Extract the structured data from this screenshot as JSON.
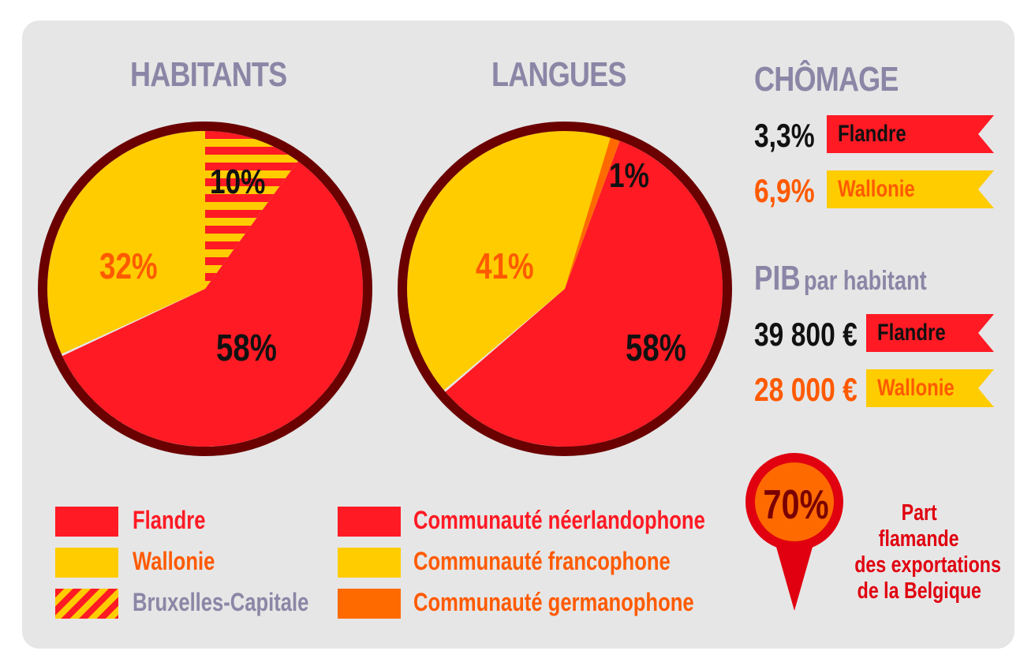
{
  "colors": {
    "flandre": "#ff1a24",
    "wallonie": "#ffcc00",
    "germanophone": "#ff6a00",
    "outline": "#6b0000",
    "title": "#8b86a6",
    "orange_text": "#ff5a00",
    "dark_text": "#111111"
  },
  "chart_data": [
    {
      "type": "pie",
      "title": "HABITANTS",
      "slices": [
        {
          "name": "Flandre",
          "value": 58,
          "label": "58%"
        },
        {
          "name": "Wallonie",
          "value": 32,
          "label": "32%"
        },
        {
          "name": "Bruxelles-Capitale",
          "value": 10,
          "label": "10%"
        }
      ]
    },
    {
      "type": "pie",
      "title": "LANGUES",
      "slices": [
        {
          "name": "Communauté néerlandophone",
          "value": 58,
          "label": "58%"
        },
        {
          "name": "Communauté francophone",
          "value": 41,
          "label": "41%"
        },
        {
          "name": "Communauté germanophone",
          "value": 1,
          "label": "1%"
        }
      ]
    }
  ],
  "legend_left": [
    {
      "label": "Flandre",
      "swatch": "flandre"
    },
    {
      "label": "Wallonie",
      "swatch": "wallonie"
    },
    {
      "label": "Bruxelles-Capitale",
      "swatch": "striped"
    }
  ],
  "legend_right": [
    {
      "label": "Communauté néerlandophone",
      "swatch": "flandre"
    },
    {
      "label": "Communauté francophone",
      "swatch": "wallonie"
    },
    {
      "label": "Communauté germanophone",
      "swatch": "germanophone"
    }
  ],
  "chomage": {
    "title": "CHÔMAGE",
    "rows": [
      {
        "value": "3,3%",
        "region": "Flandre"
      },
      {
        "value": "6,9%",
        "region": "Wallonie"
      }
    ]
  },
  "pib": {
    "title_main": "PIB",
    "title_sub": "par habitant",
    "rows": [
      {
        "value": "39 800 €",
        "region": "Flandre"
      },
      {
        "value": "28 000 €",
        "region": "Wallonie"
      }
    ]
  },
  "exports": {
    "percent": "70%",
    "lines": [
      "Part",
      "flamande",
      "des exportations",
      "de la Belgique"
    ]
  }
}
